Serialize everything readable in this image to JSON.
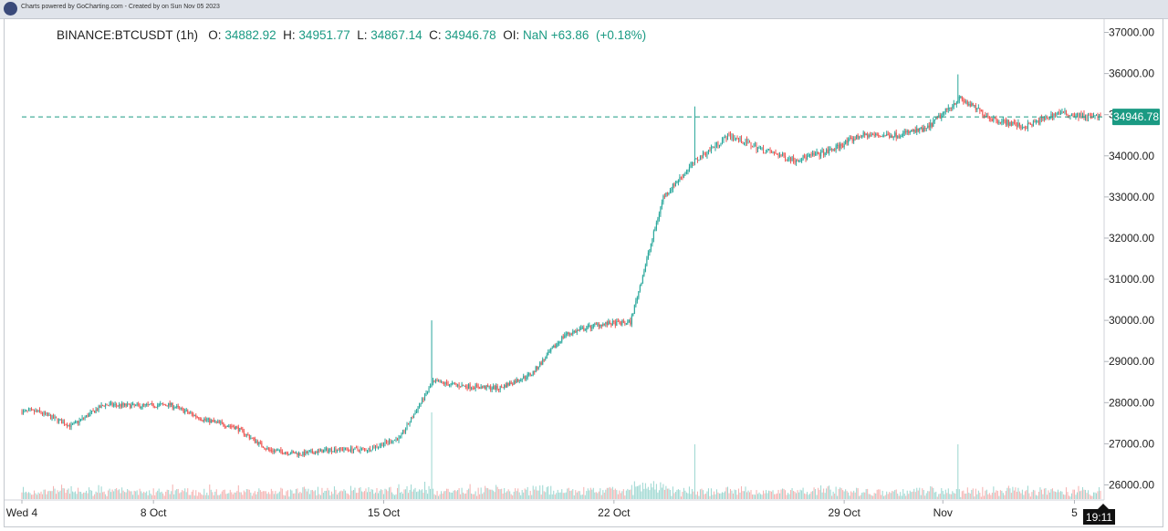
{
  "header": {
    "credit": "Charts powered by GoCharting.com - Created by  on Sun Nov 05 2023"
  },
  "legend": {
    "symbol": "BINANCE:BTCUSDT (1h)",
    "o_label": "O:",
    "o_value": "34882.92",
    "h_label": "H:",
    "h_value": "34951.77",
    "l_label": "L:",
    "l_value": "34867.14",
    "c_label": "C:",
    "c_value": "34946.78",
    "oi_label": "OI:",
    "oi_value": "NaN",
    "change": "+63.86",
    "change_pct": "(+0.18%)"
  },
  "colors": {
    "up": "#26a69a",
    "down": "#ef5350",
    "last_price": "#1a9a83",
    "crosshair_label_bg": "#111111"
  },
  "crosshair": {
    "time_label": "19:11"
  },
  "chart_data": {
    "type": "candlestick",
    "symbol": "BINANCE:BTCUSDT",
    "interval": "1h",
    "ylim": [
      25700,
      37300
    ],
    "yticks": [
      "37000.00",
      "36000.00",
      "35000.00",
      "34000.00",
      "33000.00",
      "32000.00",
      "31000.00",
      "30000.00",
      "29000.00",
      "28000.00",
      "27000.00",
      "26000.00"
    ],
    "last_price": 34946.78,
    "last_price_label": "34946.78",
    "x_tick_labels": [
      {
        "label": "Wed 4",
        "day": 0
      },
      {
        "label": "8 Oct",
        "day": 4
      },
      {
        "label": "15 Oct",
        "day": 11
      },
      {
        "label": "22 Oct",
        "day": 18
      },
      {
        "label": "29 Oct",
        "day": 25
      },
      {
        "label": "Nov",
        "day": 28
      },
      {
        "label": "5",
        "day": 32
      }
    ],
    "x_start": "2023-10-04",
    "x_end": "2023-11-05 19:00",
    "daily_close": [
      {
        "date": "2023-10-04",
        "value": 27780
      },
      {
        "date": "2023-10-05",
        "value": 27430
      },
      {
        "date": "2023-10-06",
        "value": 27950
      },
      {
        "date": "2023-10-07",
        "value": 27920
      },
      {
        "date": "2023-10-08",
        "value": 27950
      },
      {
        "date": "2023-10-09",
        "value": 27600
      },
      {
        "date": "2023-10-10",
        "value": 27400
      },
      {
        "date": "2023-10-11",
        "value": 26850
      },
      {
        "date": "2023-10-12",
        "value": 26750
      },
      {
        "date": "2023-10-13",
        "value": 26870
      },
      {
        "date": "2023-10-14",
        "value": 26860
      },
      {
        "date": "2023-10-15",
        "value": 27150
      },
      {
        "date": "2023-10-16",
        "value": 28500
      },
      {
        "date": "2023-10-17",
        "value": 28400
      },
      {
        "date": "2023-10-18",
        "value": 28350
      },
      {
        "date": "2023-10-19",
        "value": 28700
      },
      {
        "date": "2023-10-20",
        "value": 29650
      },
      {
        "date": "2023-10-21",
        "value": 29900
      },
      {
        "date": "2023-10-22",
        "value": 29950
      },
      {
        "date": "2023-10-23",
        "value": 33000
      },
      {
        "date": "2023-10-24",
        "value": 33900
      },
      {
        "date": "2023-10-25",
        "value": 34500
      },
      {
        "date": "2023-10-26",
        "value": 34150
      },
      {
        "date": "2023-10-27",
        "value": 33900
      },
      {
        "date": "2023-10-28",
        "value": 34100
      },
      {
        "date": "2023-10-29",
        "value": 34500
      },
      {
        "date": "2023-10-30",
        "value": 34500
      },
      {
        "date": "2023-10-31",
        "value": 34650
      },
      {
        "date": "2023-11-01",
        "value": 35400
      },
      {
        "date": "2023-11-02",
        "value": 34900
      },
      {
        "date": "2023-11-03",
        "value": 34700
      },
      {
        "date": "2023-11-04",
        "value": 35050
      },
      {
        "date": "2023-11-05",
        "value": 34947
      }
    ],
    "spikes": [
      {
        "date": "2023-10-16",
        "high": 30000,
        "volume_spike": true
      },
      {
        "date": "2023-10-24",
        "high": 35200
      },
      {
        "date": "2023-11-01",
        "high": 35980
      }
    ]
  }
}
